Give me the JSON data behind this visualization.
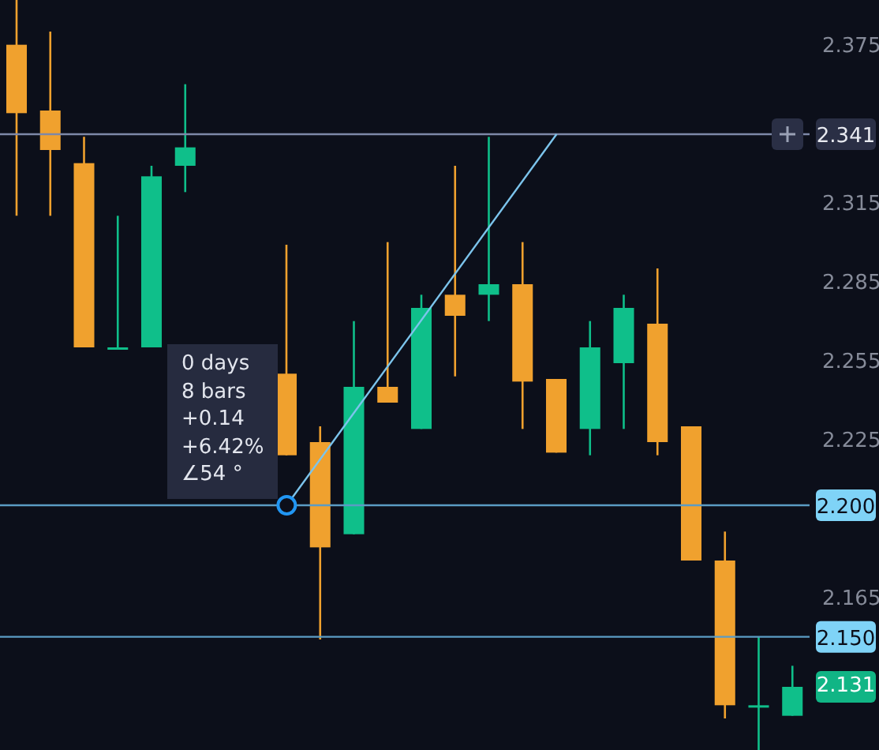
{
  "chart_data": {
    "type": "candlestick",
    "categories": [
      null,
      null,
      null,
      null,
      null,
      null,
      null,
      null,
      null,
      null,
      null,
      null,
      null,
      null,
      null,
      null,
      null,
      null,
      null,
      null,
      null,
      null,
      null,
      null
    ],
    "ohlc": [
      [
        2.375,
        2.392,
        2.31,
        2.349
      ],
      [
        2.35,
        2.38,
        2.31,
        2.335
      ],
      [
        2.33,
        2.34,
        2.26,
        2.26
      ],
      [
        2.26,
        2.31,
        2.26,
        2.26
      ],
      [
        2.26,
        2.329,
        2.26,
        2.325
      ],
      [
        2.329,
        2.36,
        2.319,
        2.336
      ],
      null,
      null,
      [
        2.25,
        2.299,
        2.219,
        2.219
      ],
      [
        2.224,
        2.23,
        2.149,
        2.184
      ],
      [
        2.189,
        2.27,
        2.189,
        2.245
      ],
      [
        2.245,
        2.3,
        2.239,
        2.239
      ],
      [
        2.229,
        2.28,
        2.229,
        2.275
      ],
      [
        2.28,
        2.329,
        2.249,
        2.272
      ],
      [
        2.28,
        2.34,
        2.27,
        2.284
      ],
      [
        2.284,
        2.3,
        2.229,
        2.247
      ],
      [
        2.248,
        2.248,
        2.22,
        2.22
      ],
      [
        2.229,
        2.27,
        2.219,
        2.26
      ],
      [
        2.254,
        2.28,
        2.229,
        2.275
      ],
      [
        2.269,
        2.29,
        2.219,
        2.224
      ],
      [
        2.23,
        2.23,
        2.179,
        2.179
      ],
      [
        2.179,
        2.19,
        2.119,
        2.124
      ],
      [
        2.124,
        2.15,
        2.107,
        2.124
      ],
      [
        2.12,
        2.139,
        2.12,
        2.131
      ]
    ],
    "colors": [
      "#f0a12e",
      "#f0a12e",
      "#f0a12e",
      "#0fbf8a",
      "#0fbf8a",
      "#0fbf8a",
      null,
      null,
      "#f0a12e",
      "#f0a12e",
      "#0fbf8a",
      "#f0a12e",
      "#0fbf8a",
      "#f0a12e",
      "#0fbf8a",
      "#f0a12e",
      "#f0a12e",
      "#0fbf8a",
      "#0fbf8a",
      "#f0a12e",
      "#f0a12e",
      "#f0a12e",
      "#0fbf8a",
      "#0fbf8a"
    ],
    "series": [
      {
        "type": "line",
        "color": "#7cc4ec",
        "values": [
          null,
          null,
          null,
          null,
          null,
          null,
          null,
          null,
          2.2,
          null,
          null,
          null,
          null,
          null,
          null,
          null,
          2.341,
          null,
          null,
          null,
          null,
          null,
          null,
          null
        ]
      }
    ],
    "ylim": [
      2.107,
      2.392
    ],
    "yticks": [
      2.375,
      2.315,
      2.285,
      2.255,
      2.225,
      2.165
    ],
    "ref_lines": [
      {
        "axis": "y",
        "value": 2.341,
        "label": "2.341",
        "color": "#7d88a8"
      },
      {
        "axis": "y",
        "value": 2.2,
        "label": "2.200",
        "color": "#5b9cc4"
      },
      {
        "axis": "y",
        "value": 2.15,
        "label": "2.150",
        "color": "#5b9cc4"
      }
    ],
    "annotations": [
      "0 days",
      "8 bars",
      "+0.14",
      "+6.42%",
      "∠54 °",
      "2.131"
    ]
  }
}
